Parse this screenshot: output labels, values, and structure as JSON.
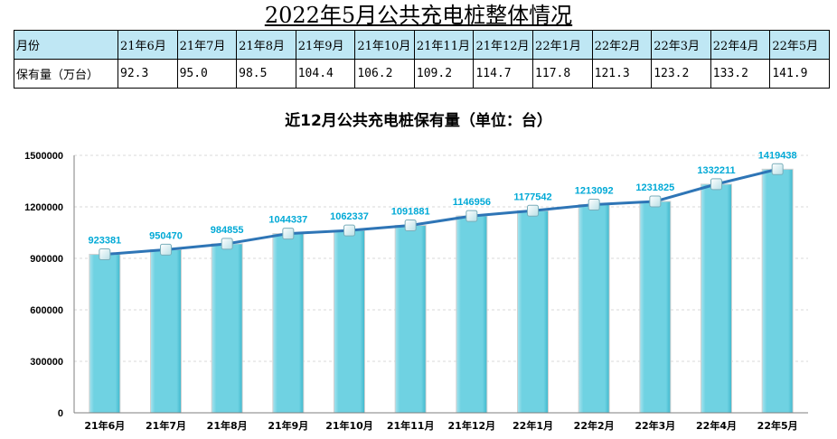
{
  "page": {
    "title": "2022年5月公共充电桩整体情况",
    "chart_title": "近12月公共充电桩保有量（单位：台）"
  },
  "table": {
    "header_label": "月份",
    "row_label": "保有量（万台）",
    "months": [
      "21年6月",
      "21年7月",
      "21年8月",
      "21年9月",
      "21年10月",
      "21年11月",
      "21年12月",
      "22年1月",
      "22年2月",
      "22年3月",
      "22年4月",
      "22年5月"
    ],
    "values": [
      "92.3",
      "95.0",
      "98.5",
      "104.4",
      "106.2",
      "109.2",
      "114.7",
      "117.8",
      "121.3",
      "123.2",
      "133.2",
      "141.9"
    ]
  },
  "colors": {
    "bar": "#6fd2e2",
    "line": "#2e75b6",
    "label": "#00a9d6",
    "header_bg": "#bfe7f4",
    "grid": "#d9d9d9"
  },
  "chart_data": {
    "type": "bar+line",
    "title": "近12月公共充电桩保有量（单位：台）",
    "categories": [
      "21年6月",
      "21年7月",
      "21年8月",
      "21年9月",
      "21年10月",
      "21年11月",
      "21年12月",
      "22年1月",
      "22年2月",
      "22年3月",
      "22年4月",
      "22年5月"
    ],
    "values": [
      923381,
      950470,
      984855,
      1044337,
      1062337,
      1091881,
      1146956,
      1177542,
      1213092,
      1231825,
      1332211,
      1419438
    ],
    "y_ticks": [
      "0",
      "300000",
      "600000",
      "900000",
      "1200000",
      "1500000"
    ],
    "ylim": [
      0,
      1500000
    ],
    "grid": true,
    "legend": "none"
  }
}
